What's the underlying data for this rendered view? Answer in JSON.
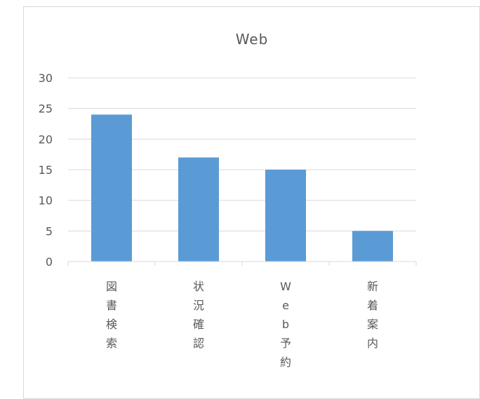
{
  "chart_data": {
    "type": "bar",
    "title": "Web",
    "xlabel": "",
    "ylabel": "",
    "categories": [
      "図書検索",
      "状況確認",
      "Web予約",
      "新着案内"
    ],
    "values": [
      24,
      17,
      15,
      5
    ],
    "ylim": [
      0,
      30
    ],
    "yticks": [
      0,
      5,
      10,
      15,
      20,
      25,
      30
    ],
    "grid": true,
    "legend": "none",
    "bar_color": "#5b9bd5",
    "grid_color": "#d9d9d9",
    "text_color": "#595959"
  }
}
